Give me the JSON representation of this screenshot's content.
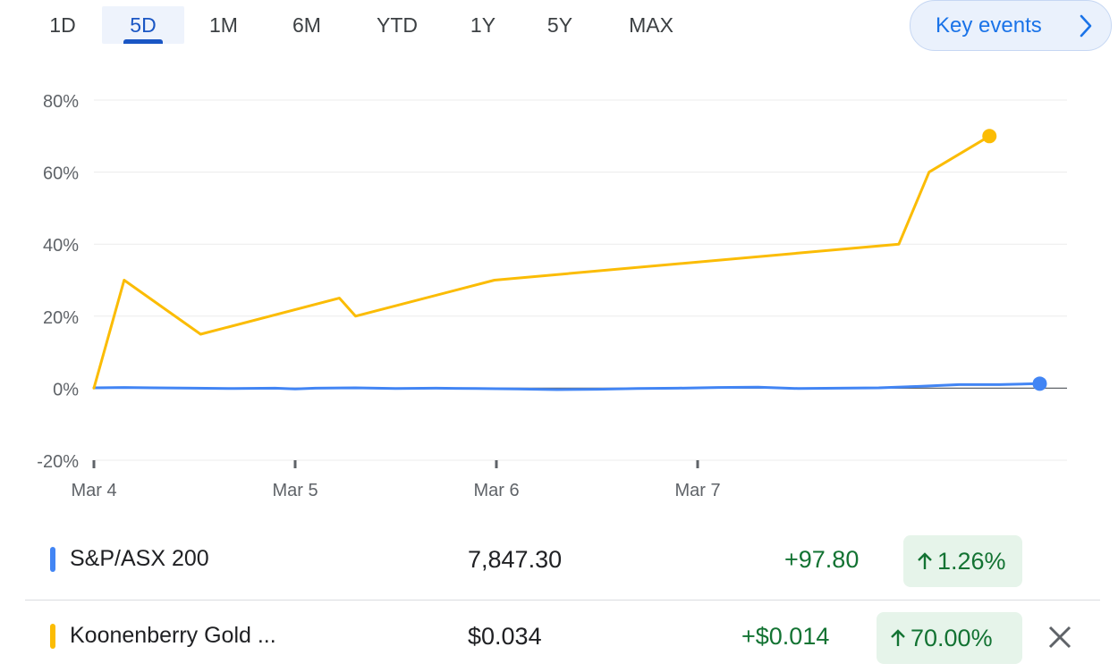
{
  "ranges": [
    {
      "label": "1D"
    },
    {
      "label": "5D"
    },
    {
      "label": "1M"
    },
    {
      "label": "6M"
    },
    {
      "label": "YTD"
    },
    {
      "label": "1Y"
    },
    {
      "label": "5Y"
    },
    {
      "label": "MAX"
    }
  ],
  "selected_range": "5D",
  "key_events": {
    "label": "Key events",
    "icon": "chevron-right-icon"
  },
  "chart_data": {
    "type": "line",
    "x_ticks": [
      "Mar 4",
      "Mar 5",
      "Mar 6",
      "Mar 7"
    ],
    "y_ticks": [
      "-20%",
      "0%",
      "20%",
      "40%",
      "60%",
      "80%"
    ],
    "ylim": [
      -20,
      80
    ],
    "x_range": [
      0,
      4.84
    ],
    "grid": true,
    "series": [
      {
        "name": "S&P/ASX 200",
        "color": "#4285f4",
        "x": [
          0,
          0.15,
          0.3,
          0.5,
          0.7,
          0.9,
          1.0,
          1.1,
          1.3,
          1.5,
          1.7,
          1.9,
          2.1,
          2.3,
          2.5,
          2.7,
          2.9,
          3.1,
          3.3,
          3.5,
          3.7,
          3.9,
          4.1,
          4.3,
          4.5,
          4.7
        ],
        "values": [
          0.1,
          0.2,
          0.1,
          0.0,
          -0.1,
          0.0,
          -0.2,
          0.0,
          0.1,
          -0.1,
          0.0,
          -0.1,
          -0.2,
          -0.4,
          -0.3,
          -0.1,
          0.0,
          0.2,
          0.3,
          -0.1,
          0.0,
          0.1,
          0.5,
          1.0,
          1.0,
          1.26
        ]
      },
      {
        "name": "Koonenberry Gold ...",
        "color": "#fbbc04",
        "x": [
          0,
          0.15,
          0.53,
          1.22,
          1.3,
          1.99,
          4.0,
          4.15,
          4.45
        ],
        "values": [
          0,
          30,
          15,
          25,
          20,
          30,
          40,
          60,
          70
        ]
      }
    ]
  },
  "rows": [
    {
      "name": "S&P/ASX 200",
      "color": "#4285f4",
      "price": "7,847.30",
      "change": "+97.80",
      "percent": "1.26%"
    },
    {
      "name": "Koonenberry Gold ...",
      "color": "#fbbc04",
      "price": "$0.034",
      "change": "+$0.014",
      "percent": "70.00%"
    }
  ],
  "icons": {
    "arrow": "arrow-up-icon",
    "close": "close-icon"
  }
}
